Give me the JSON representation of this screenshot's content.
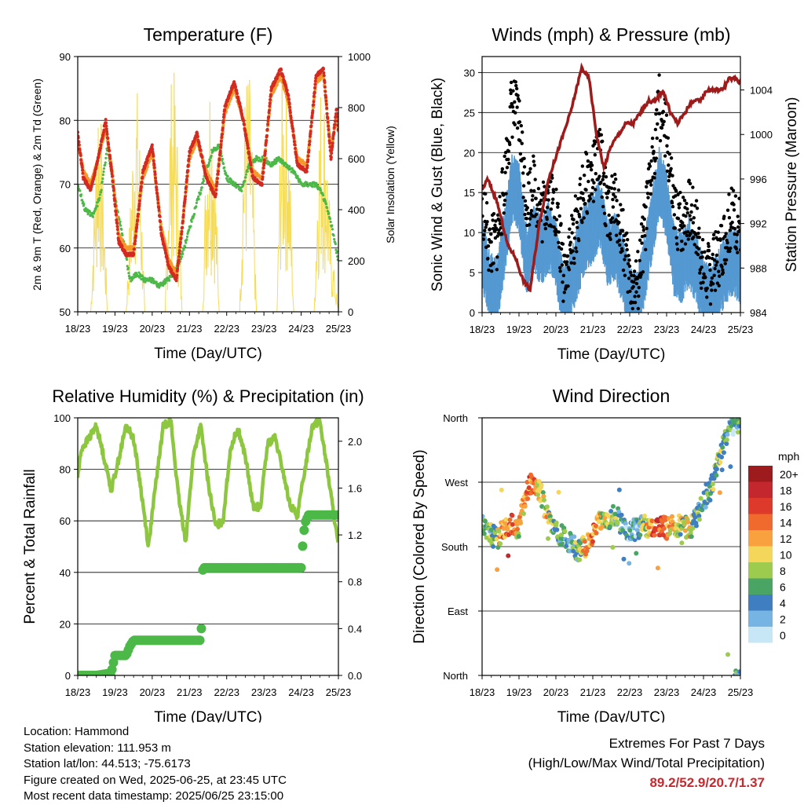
{
  "colors": {
    "temp_2m": "#d42a20",
    "temp_9m": "#f39a2a",
    "dewpoint": "#4cb848",
    "insolation": "#f6dc55",
    "gust": "#000000",
    "wind": "#5599d2",
    "pressure": "#9d1b1b",
    "rh": "#8dc63f",
    "rain": "#4cb848",
    "extremes": "#c8282d"
  },
  "time_ticks": [
    "18/23",
    "19/23",
    "20/23",
    "21/23",
    "22/23",
    "23/23",
    "24/23",
    "25/23"
  ],
  "chart_data": [
    {
      "id": "temperature",
      "type": "line",
      "title": "Temperature (F)",
      "xlabel": "Time (Day/UTC)",
      "ylabel": "2m & 9m T (Red, Orange) & 2m Td (Green)",
      "y2label": "Solar Insolation (Yellow)",
      "ylim": [
        50,
        90
      ],
      "y2lim": [
        0,
        1000
      ],
      "yticks": [
        50,
        60,
        70,
        80,
        90
      ],
      "y2ticks": [
        0,
        200,
        400,
        600,
        800,
        1000
      ],
      "grid": true,
      "series": [
        {
          "key": "t2m",
          "axis": "left",
          "x": [
            0,
            0.15,
            0.35,
            0.55,
            0.75,
            0.95,
            1.1,
            1.3,
            1.5,
            1.75,
            2.0,
            2.25,
            2.45,
            2.65,
            2.8,
            3.0,
            3.2,
            3.45,
            3.7,
            3.95,
            4.2,
            4.45,
            4.7,
            4.95,
            5.2,
            5.45,
            5.65,
            5.9,
            6.15,
            6.4,
            6.6,
            6.8,
            6.95,
            7.0
          ],
          "y": [
            78,
            71,
            69,
            74,
            80,
            70,
            61,
            59,
            59,
            72,
            76,
            62,
            57,
            55,
            63,
            75,
            78,
            71,
            68,
            82,
            86,
            80,
            71,
            70,
            85,
            88,
            84,
            73,
            72,
            87,
            88,
            74,
            82,
            78
          ]
        },
        {
          "key": "t9m",
          "axis": "left",
          "x": [
            0,
            0.15,
            0.35,
            0.55,
            0.75,
            0.95,
            1.1,
            1.3,
            1.5,
            1.75,
            2.0,
            2.25,
            2.45,
            2.65,
            2.8,
            3.0,
            3.2,
            3.45,
            3.7,
            3.95,
            4.2,
            4.45,
            4.7,
            4.95,
            5.2,
            5.45,
            5.65,
            5.9,
            6.15,
            6.4,
            6.6,
            6.8,
            6.95,
            7.0
          ],
          "y": [
            77,
            72,
            70,
            74,
            79,
            71,
            62,
            60,
            60,
            71,
            75,
            63,
            58,
            56,
            63,
            74,
            77,
            72,
            69,
            81,
            85,
            80,
            72,
            71,
            84,
            87,
            83,
            74,
            73,
            86,
            87,
            75,
            81,
            78
          ]
        },
        {
          "key": "td",
          "axis": "left",
          "x": [
            0,
            0.2,
            0.4,
            0.6,
            0.8,
            1.0,
            1.2,
            1.4,
            1.6,
            1.8,
            2.0,
            2.2,
            2.4,
            2.6,
            2.8,
            3.0,
            3.2,
            3.4,
            3.6,
            3.8,
            4.0,
            4.2,
            4.4,
            4.6,
            4.8,
            5.0,
            5.2,
            5.4,
            5.6,
            5.8,
            6.0,
            6.2,
            6.4,
            6.6,
            6.8,
            7.0
          ],
          "y": [
            70,
            66,
            65,
            68,
            76,
            68,
            62,
            55,
            56,
            55,
            55,
            54,
            55,
            56,
            59,
            63,
            67,
            71,
            75,
            76,
            71,
            70,
            69,
            73,
            74,
            74,
            73,
            74,
            73,
            72,
            70,
            70,
            70,
            68,
            64,
            58
          ]
        },
        {
          "key": "solar",
          "axis": "right",
          "x": [
            0,
            0.35,
            0.45,
            0.55,
            0.65,
            0.8,
            1.1,
            1.3,
            1.45,
            1.55,
            1.65,
            1.8,
            2.1,
            2.35,
            2.45,
            2.55,
            2.65,
            2.8,
            3.1,
            3.35,
            3.45,
            3.55,
            3.65,
            3.8,
            4.1,
            4.35,
            4.45,
            4.55,
            4.65,
            4.8,
            5.1,
            5.35,
            5.45,
            5.55,
            5.65,
            5.8,
            6.1,
            6.35,
            6.45,
            6.55,
            6.65,
            6.8,
            7.0
          ],
          "y": [
            0,
            0,
            500,
            1000,
            700,
            0,
            0,
            0,
            600,
            980,
            800,
            0,
            0,
            0,
            800,
            1000,
            850,
            0,
            0,
            0,
            700,
            1000,
            850,
            0,
            0,
            0,
            800,
            990,
            900,
            0,
            0,
            0,
            850,
            990,
            880,
            0,
            0,
            0,
            700,
            990,
            850,
            300,
            0
          ]
        }
      ]
    },
    {
      "id": "winds",
      "type": "scatter",
      "title": "Winds (mph) & Pressure (mb)",
      "xlabel": "Time (Day/UTC)",
      "ylabel": "Sonic Wind & Gust (Blue, Black)",
      "y2label": "Station Pressure (Maroon)",
      "ylim": [
        0,
        32
      ],
      "y2lim": [
        984,
        1007
      ],
      "yticks": [
        0,
        5,
        10,
        15,
        20,
        25,
        30
      ],
      "y2ticks": [
        984,
        988,
        992,
        996,
        1000,
        1004
      ],
      "grid": true,
      "series": [
        {
          "key": "gust",
          "axis": "left",
          "x": [
            0,
            0.2,
            0.4,
            0.6,
            0.8,
            1.0,
            1.2,
            1.4,
            1.6,
            1.8,
            2.0,
            2.2,
            2.4,
            2.6,
            2.8,
            3.0,
            3.2,
            3.4,
            3.6,
            3.8,
            4.0,
            4.2,
            4.4,
            4.6,
            4.8,
            5.0,
            5.2,
            5.4,
            5.6,
            5.8,
            6.0,
            6.2,
            6.4,
            6.6,
            6.8,
            7.0
          ],
          "y": [
            14,
            8,
            9,
            16,
            26,
            24,
            14,
            16,
            12,
            15,
            13,
            5,
            8,
            12,
            16,
            17,
            20,
            12,
            14,
            10,
            4,
            3,
            10,
            18,
            26,
            22,
            12,
            11,
            13,
            11,
            5,
            5,
            7,
            10,
            12,
            11
          ]
        },
        {
          "key": "wind",
          "axis": "left",
          "x": [
            0,
            0.2,
            0.4,
            0.6,
            0.8,
            1.0,
            1.2,
            1.4,
            1.6,
            1.8,
            2.0,
            2.2,
            2.4,
            2.6,
            2.8,
            3.0,
            3.2,
            3.4,
            3.6,
            3.8,
            4.0,
            4.2,
            4.4,
            4.6,
            4.8,
            5.0,
            5.2,
            5.4,
            5.6,
            5.8,
            6.0,
            6.2,
            6.4,
            6.6,
            6.8,
            7.0
          ],
          "y": [
            8,
            4,
            3,
            9,
            16,
            15,
            7,
            10,
            8,
            10,
            8,
            2,
            4,
            7,
            10,
            11,
            13,
            8,
            9,
            6,
            2,
            1,
            6,
            11,
            17,
            14,
            7,
            6,
            8,
            6,
            3,
            2,
            4,
            6,
            7,
            6
          ]
        },
        {
          "key": "pressure",
          "axis": "right",
          "x": [
            0,
            0.15,
            0.4,
            0.7,
            0.9,
            1.1,
            1.3,
            1.55,
            1.8,
            2.1,
            2.4,
            2.7,
            2.9,
            3.1,
            3.3,
            3.5,
            3.7,
            3.9,
            4.1,
            4.3,
            4.5,
            4.7,
            4.9,
            5.1,
            5.3,
            5.5,
            5.7,
            5.9,
            6.1,
            6.3,
            6.5,
            6.7,
            6.9,
            7.0
          ],
          "y": [
            995,
            996,
            994,
            990,
            989,
            987,
            986,
            992,
            996,
            999,
            1002,
            1006,
            1005,
            1000,
            997,
            999,
            1000,
            1001,
            1001,
            1002,
            1003,
            1003,
            1004,
            1002,
            1001,
            1002,
            1003,
            1003,
            1004,
            1004,
            1004,
            1005,
            1005,
            1004.5
          ]
        }
      ]
    },
    {
      "id": "humidity",
      "type": "line",
      "title": "Relative Humidity (%) & Precipitation (in)",
      "xlabel": "Time (Day/UTC)",
      "ylabel": "Percent & Total Rainfall",
      "ylim": [
        0,
        100
      ],
      "y2lim": [
        0,
        2.2
      ],
      "yticks": [
        0,
        20,
        40,
        60,
        80,
        100
      ],
      "y2ticks": [
        0.0,
        0.4,
        0.8,
        1.2,
        1.6,
        2.0
      ],
      "grid": true,
      "series": [
        {
          "key": "rh",
          "axis": "left",
          "x": [
            0,
            0.1,
            0.3,
            0.5,
            0.7,
            0.9,
            1.1,
            1.3,
            1.5,
            1.7,
            1.9,
            2.1,
            2.3,
            2.5,
            2.7,
            2.9,
            3.1,
            3.3,
            3.5,
            3.7,
            3.9,
            4.1,
            4.3,
            4.5,
            4.7,
            4.9,
            5.1,
            5.3,
            5.5,
            5.7,
            5.9,
            6.1,
            6.3,
            6.5,
            6.7,
            6.9,
            7.0
          ],
          "y": [
            77,
            88,
            92,
            97,
            85,
            72,
            84,
            97,
            92,
            72,
            50,
            75,
            97,
            99,
            70,
            52,
            85,
            97,
            75,
            58,
            60,
            88,
            96,
            85,
            66,
            65,
            90,
            92,
            80,
            66,
            62,
            80,
            97,
            99,
            80,
            60,
            50
          ]
        },
        {
          "key": "rain",
          "axis": "right",
          "x": [
            0,
            0.5,
            0.9,
            1.0,
            1.05,
            1.3,
            1.4,
            1.5,
            1.7,
            2.0,
            2.5,
            3.0,
            3.3,
            3.33,
            3.36,
            3.4,
            4.0,
            5.0,
            5.5,
            6.0,
            6.05,
            6.1,
            6.2,
            6.5,
            7.0
          ],
          "y": [
            0,
            0,
            0.02,
            0.17,
            0.17,
            0.17,
            0.25,
            0.3,
            0.3,
            0.3,
            0.3,
            0.3,
            0.3,
            0.45,
            0.9,
            0.92,
            0.92,
            0.92,
            0.92,
            0.92,
            1.15,
            1.3,
            1.37,
            1.37,
            1.37
          ]
        }
      ]
    },
    {
      "id": "wind_direction",
      "type": "scatter",
      "title": "Wind Direction",
      "xlabel": "Time (Day/UTC)",
      "ylabel": "Direction (Colored By Speed)",
      "ylim": [
        0,
        360
      ],
      "ytick_labels": [
        "North",
        "East",
        "South",
        "West",
        "North"
      ],
      "grid": true,
      "colorbar": {
        "title": "mph",
        "labels": [
          "20+",
          "18",
          "16",
          "14",
          "12",
          "10",
          "8",
          "6",
          "4",
          "2",
          "0"
        ],
        "colors": [
          "#9e1b1d",
          "#c4272e",
          "#dd3a2b",
          "#ef6a2c",
          "#f9a03f",
          "#f4d65a",
          "#9ccb4d",
          "#4aa565",
          "#3f7fc1",
          "#76b4e3",
          "#c7e7f6"
        ]
      },
      "series": [
        {
          "key": "direction",
          "x": [
            0,
            0.2,
            0.4,
            0.6,
            0.8,
            1.0,
            1.2,
            1.4,
            1.6,
            1.8,
            2.0,
            2.2,
            2.4,
            2.6,
            2.8,
            3.0,
            3.2,
            3.4,
            3.6,
            3.8,
            4.0,
            4.2,
            4.4,
            4.6,
            4.8,
            5.0,
            5.2,
            5.4,
            5.6,
            5.8,
            6.0,
            6.2,
            6.4,
            6.6,
            6.8,
            7.0
          ],
          "y": [
            210,
            200,
            190,
            205,
            210,
            205,
            260,
            270,
            255,
            215,
            200,
            195,
            185,
            175,
            180,
            200,
            220,
            215,
            225,
            210,
            200,
            205,
            210,
            205,
            210,
            205,
            210,
            210,
            205,
            220,
            240,
            260,
            300,
            330,
            350,
            355
          ],
          "speed": [
            5,
            6,
            8,
            14,
            15,
            10,
            14,
            13,
            10,
            9,
            6,
            5,
            4,
            6,
            12,
            14,
            10,
            8,
            6,
            5,
            3,
            4,
            8,
            14,
            16,
            12,
            10,
            8,
            10,
            6,
            4,
            6,
            8,
            6,
            4,
            5
          ]
        }
      ]
    }
  ],
  "station": {
    "location": "Location: Hammond",
    "elevation": "Station elevation: 111.953 m",
    "latlon": "Station lat/lon: 44.513; -75.6173",
    "created": "Figure created on Wed, 2025-06-25, at 23:45 UTC",
    "timestamp": "Most recent data timestamp: 2025/06/25 23:15:00"
  },
  "extremes": {
    "title": "Extremes For Past 7 Days",
    "subtitle": "(High/Low/Max Wind/Total Precipitation)",
    "values": "89.2/52.9/20.7/1.37"
  }
}
